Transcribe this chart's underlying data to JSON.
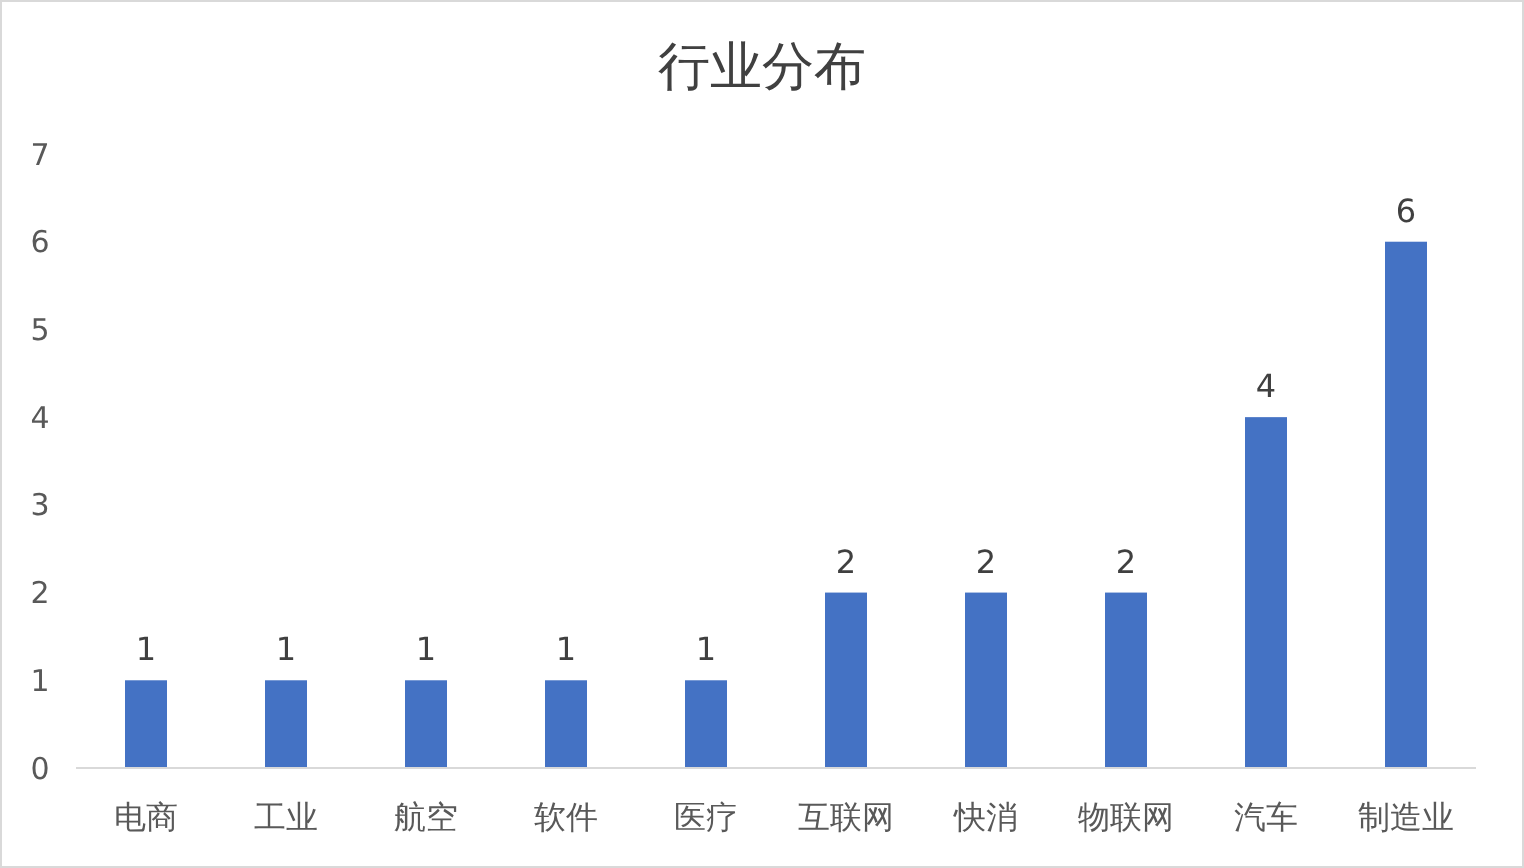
{
  "chart_data": {
    "type": "bar",
    "title": "行业分布",
    "categories": [
      "电商",
      "工业",
      "航空",
      "软件",
      "医疗",
      "互联网",
      "快消",
      "物联网",
      "汽车",
      "制造业"
    ],
    "values": [
      1,
      1,
      1,
      1,
      1,
      2,
      2,
      2,
      4,
      6
    ],
    "color": "#4472c4",
    "ylim": [
      0,
      7
    ],
    "yticks": [
      0,
      1,
      2,
      3,
      4,
      5,
      6,
      7
    ],
    "grid": false,
    "data_labels": true
  }
}
